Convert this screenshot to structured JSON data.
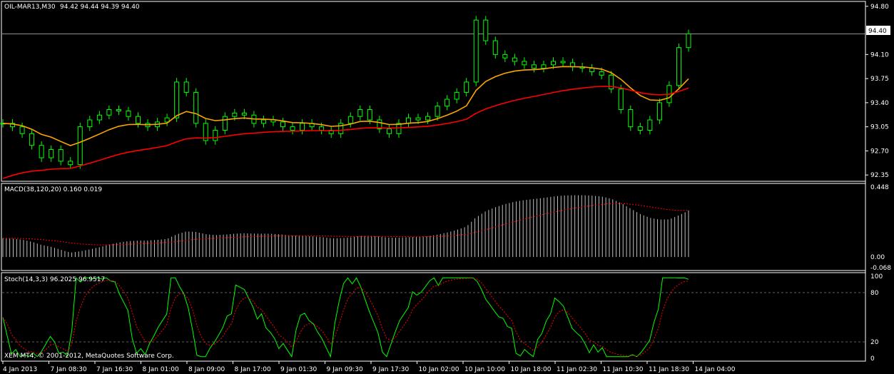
{
  "main_pane": {
    "symbol_label": "OIL-MAR13,M30",
    "ohlc_label": "94.42 94.44 94.39 94.40",
    "price_ticks": [
      "94.80",
      "94.10",
      "93.75",
      "93.40",
      "93.05",
      "92.70",
      "92.35"
    ],
    "current_price": "94.40",
    "ma_fast_color": "#ffa500",
    "ma_slow_color": "#ff0000",
    "candle_color": "#00ff00"
  },
  "macd_pane": {
    "label": "MACD(38,120,20) 0.160 0.019",
    "ticks": [
      "0.448",
      "0.00",
      "-0.068"
    ],
    "hist_color": "#c0c0c0",
    "signal_color": "#ff0000"
  },
  "stoch_pane": {
    "label": "Stoch(14,3,3) 96.2025 96.9517",
    "ticks": [
      "100",
      "80",
      "20",
      "0"
    ],
    "main_color": "#00ff00",
    "signal_color": "#ff0000"
  },
  "time_axis": {
    "labels": [
      "4 Jan 2013",
      "7 Jan 08:30",
      "7 Jan 16:30",
      "8 Jan 01:00",
      "8 Jan 09:00",
      "8 Jan 17:00",
      "9 Jan 01:30",
      "9 Jan 09:30",
      "9 Jan 17:30",
      "10 Jan 02:00",
      "10 Jan 10:00",
      "10 Jan 18:00",
      "11 Jan 02:30",
      "11 Jan 10:30",
      "11 Jan 18:30",
      "14 Jan 04:00"
    ]
  },
  "copyright": "XEM MT4, © 2001-2012, MetaQuotes Software Corp.",
  "chart_data": {
    "type": "line",
    "title": "OIL-MAR13,M30",
    "series": [
      {
        "name": "OIL-MAR13,M30",
        "values": [
          93.1,
          93.05,
          92.95,
          92.78,
          92.6,
          92.72,
          92.55,
          92.5,
          93.05,
          93.15,
          93.22,
          93.3,
          93.28,
          93.2,
          93.1,
          93.05,
          93.12,
          93.18,
          93.7,
          93.55,
          93.1,
          92.85,
          93.0,
          93.2,
          93.25,
          93.22,
          93.1,
          93.15,
          93.12,
          93.05,
          93.0,
          93.1,
          93.05,
          93.0,
          92.95,
          93.1,
          93.2,
          93.3,
          93.15,
          93.02,
          92.95,
          93.1,
          93.18,
          93.15,
          93.2,
          93.35,
          93.45,
          93.55,
          93.7,
          94.6,
          94.3,
          94.1,
          94.05,
          94.0,
          93.95,
          93.9,
          93.95,
          94.0,
          93.98,
          93.92,
          93.9,
          93.85,
          93.8,
          93.6,
          93.3,
          93.05,
          93.0,
          93.15,
          93.4,
          93.65,
          94.2,
          94.4
        ]
      }
    ]
  }
}
